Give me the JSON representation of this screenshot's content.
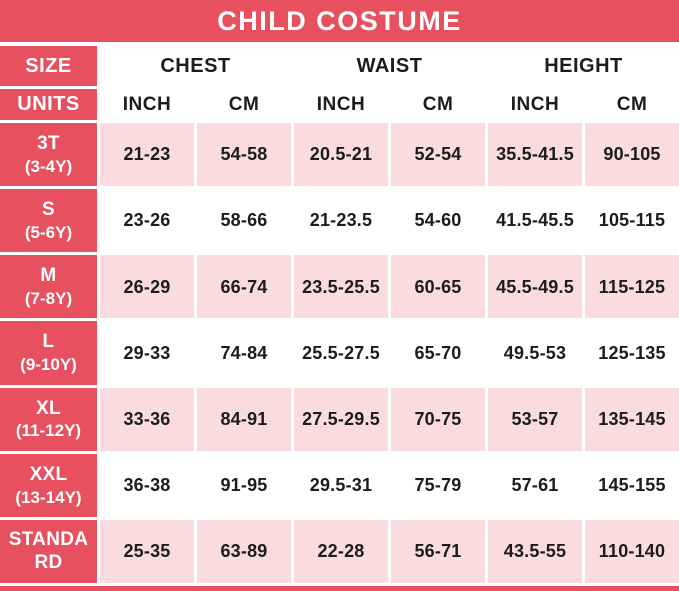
{
  "title": "CHILD COSTUME",
  "colors": {
    "red": "#e6505f",
    "pink": "#fadce0",
    "text": "#1c1c1c",
    "header_text": "#ffffff"
  },
  "chart_data": {
    "type": "table",
    "title": "CHILD COSTUME",
    "corner_labels": {
      "size": "SIZE",
      "units": "UNITS"
    },
    "groups": [
      "CHEST",
      "WAIST",
      "HEIGHT"
    ],
    "units": [
      "INCH",
      "CM",
      "INCH",
      "CM",
      "INCH",
      "CM"
    ],
    "rows": [
      {
        "size": "3T",
        "age": "(3-4Y)",
        "values": [
          "21-23",
          "54-58",
          "20.5-21",
          "52-54",
          "35.5-41.5",
          "90-105"
        ]
      },
      {
        "size": "S",
        "age": "(5-6Y)",
        "values": [
          "23-26",
          "58-66",
          "21-23.5",
          "54-60",
          "41.5-45.5",
          "105-115"
        ]
      },
      {
        "size": "M",
        "age": "(7-8Y)",
        "values": [
          "26-29",
          "66-74",
          "23.5-25.5",
          "60-65",
          "45.5-49.5",
          "115-125"
        ]
      },
      {
        "size": "L",
        "age": "(9-10Y)",
        "values": [
          "29-33",
          "74-84",
          "25.5-27.5",
          "65-70",
          "49.5-53",
          "125-135"
        ]
      },
      {
        "size": "XL",
        "age": "(11-12Y)",
        "values": [
          "33-36",
          "84-91",
          "27.5-29.5",
          "70-75",
          "53-57",
          "135-145"
        ]
      },
      {
        "size": "XXL",
        "age": "(13-14Y)",
        "values": [
          "36-38",
          "91-95",
          "29.5-31",
          "75-79",
          "57-61",
          "145-155"
        ]
      },
      {
        "size": "STANDARD",
        "age": "",
        "values": [
          "25-35",
          "63-89",
          "22-28",
          "56-71",
          "43.5-55",
          "110-140"
        ]
      }
    ]
  }
}
